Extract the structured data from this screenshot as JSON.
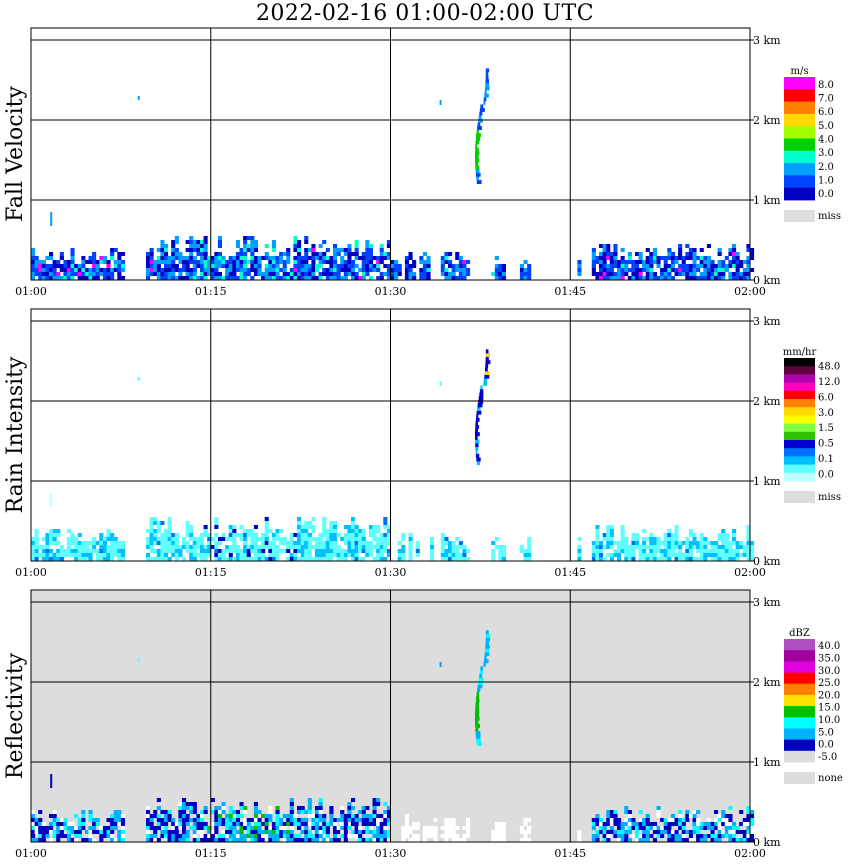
{
  "title": "2022-02-16  01:00-02:00 UTC",
  "x_ticks": [
    "01:00",
    "01:15",
    "01:30",
    "01:45",
    "02:00"
  ],
  "y_ticks": [
    "0 km",
    "1 km",
    "2 km",
    "3 km"
  ],
  "chart_data": [
    {
      "type": "heatmap",
      "panel": "fall-velocity",
      "ylabel": "Fall Velocity",
      "xlim": [
        "01:00",
        "02:00"
      ],
      "ylim_km": [
        0,
        3
      ],
      "background": "#ffffff",
      "grid": true,
      "colorbar": {
        "unit": "m/s",
        "labels": [
          "8.0",
          "7.0",
          "6.0",
          "5.0",
          "4.0",
          "3.0",
          "2.0",
          "1.0",
          "0.0"
        ],
        "colors": [
          "#ff00ff",
          "#ff0000",
          "#ff7f00",
          "#ffd700",
          "#a0ff00",
          "#00d000",
          "#00ffd0",
          "#00a0ff",
          "#0044ff",
          "#0000c0"
        ],
        "miss_label": "miss",
        "miss_color": "#dddddd"
      }
    },
    {
      "type": "heatmap",
      "panel": "rain-intensity",
      "ylabel": "Rain Intensity",
      "xlim": [
        "01:00",
        "02:00"
      ],
      "ylim_km": [
        0,
        3
      ],
      "background": "#ffffff",
      "grid": true,
      "colorbar": {
        "unit": "mm/hr",
        "labels": [
          "48.0",
          "12.0",
          "6.0",
          "3.0",
          "1.5",
          "0.5",
          "0.1",
          "0.0"
        ],
        "colors": [
          "#000000",
          "#600040",
          "#b000b0",
          "#ff00c0",
          "#ff0000",
          "#ff8000",
          "#ffd700",
          "#ffff00",
          "#80ff40",
          "#30c000",
          "#0000d0",
          "#0070ff",
          "#00c0ff",
          "#60ffff",
          "#c0ffff"
        ],
        "miss_label": "miss",
        "miss_color": "#dddddd"
      }
    },
    {
      "type": "heatmap",
      "panel": "reflectivity",
      "ylabel": "Reflectivity",
      "xlim": [
        "01:00",
        "02:00"
      ],
      "ylim_km": [
        0,
        3
      ],
      "background": "#dddddd",
      "grid": true,
      "colorbar": {
        "unit": "dBZ",
        "labels": [
          "40.0",
          "35.0",
          "30.0",
          "25.0",
          "20.0",
          "15.0",
          "10.0",
          "5.0",
          "0.0",
          "-5.0"
        ],
        "colors": [
          "#b050c0",
          "#a000a0",
          "#e000e0",
          "#ff0000",
          "#ff8000",
          "#ffe000",
          "#00c000",
          "#00ffff",
          "#00b0ff",
          "#0000c0",
          "#dddddd"
        ],
        "miss_label": "none",
        "miss_color": "#dddddd"
      }
    }
  ]
}
